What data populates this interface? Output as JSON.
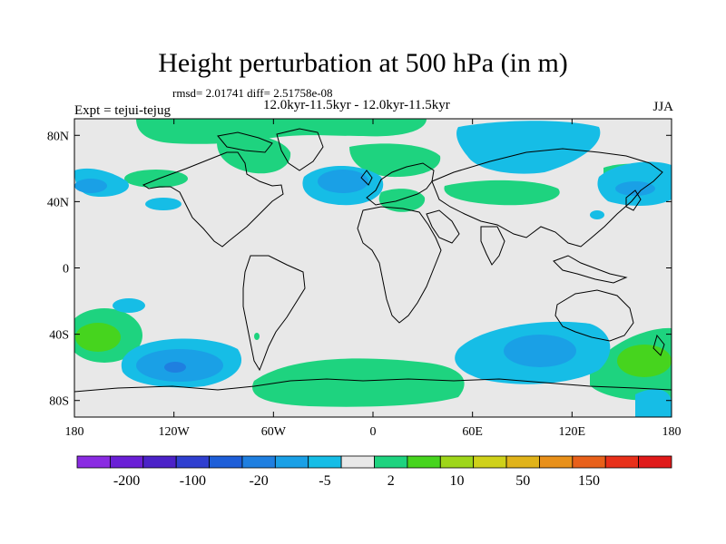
{
  "title": "Height perturbation at 500 hPa (in m)",
  "stats_text": "rmsd= 2.01741 diff= 2.51758e-08",
  "experiment_text": "Expt = tejui-tejug",
  "period_text": "12.0kyr-11.5kyr - 12.0kyr-11.5kyr",
  "season": "JJA",
  "axes": {
    "lon_ticks": [
      "180",
      "120W",
      "60W",
      "0",
      "60E",
      "120E",
      "180"
    ],
    "lat_ticks": [
      "80N",
      "40N",
      "0",
      "40S",
      "80S"
    ]
  },
  "colorbar": {
    "colors": [
      "#8a2be2",
      "#6a1fd6",
      "#4b22c8",
      "#2f3fd0",
      "#1e5ed8",
      "#1f7fe0",
      "#1aa0e6",
      "#16bde6",
      "#e8e8e8",
      "#1ed37f",
      "#46d41e",
      "#9ed61a",
      "#cfd11a",
      "#e0b31a",
      "#e8901a",
      "#e8601a",
      "#e8301a",
      "#e01a1a"
    ],
    "labels": [
      "-200",
      "-100",
      "-20",
      "-5",
      "2",
      "10",
      "50",
      "150"
    ]
  },
  "map": {
    "projection": "cylindrical equidistant",
    "lon_range": [
      -180,
      180
    ],
    "lat_range": [
      -90,
      90
    ],
    "background_color": "#e8e8e8"
  }
}
